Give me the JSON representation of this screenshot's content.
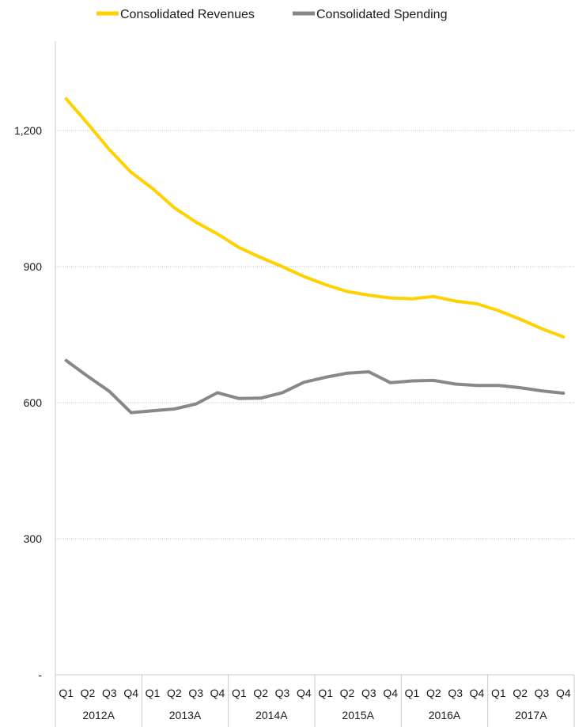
{
  "chart_data": {
    "type": "line",
    "legend_position": "top-center",
    "grid": true,
    "ylim": [
      0,
      1400
    ],
    "y_ticks": [
      0,
      300,
      600,
      900,
      1200
    ],
    "y_tick_labels": [
      "-",
      "300",
      "600",
      "900",
      "1,200"
    ],
    "categories": [
      "Q1",
      "Q2",
      "Q3",
      "Q4",
      "Q1",
      "Q2",
      "Q3",
      "Q4",
      "Q1",
      "Q2",
      "Q3",
      "Q4",
      "Q1",
      "Q2",
      "Q3",
      "Q4",
      "Q1",
      "Q2",
      "Q3",
      "Q4",
      "Q1",
      "Q2",
      "Q3",
      "Q4"
    ],
    "groups": [
      {
        "label": "2012A",
        "span": 4
      },
      {
        "label": "2013A",
        "span": 4
      },
      {
        "label": "2014A",
        "span": 4
      },
      {
        "label": "2015A",
        "span": 4
      },
      {
        "label": "2016A",
        "span": 4
      },
      {
        "label": "2017A",
        "span": 4
      }
    ],
    "series": [
      {
        "name": "Consolidated Revenues",
        "color": "#FFD100",
        "values": [
          1270,
          1215,
          1158,
          1108,
          1072,
          1030,
          998,
          972,
          942,
          920,
          900,
          878,
          860,
          845,
          837,
          831,
          829,
          834,
          824,
          818,
          803,
          784,
          763,
          745
        ]
      },
      {
        "name": "Consolidated Spending",
        "color": "#888888",
        "values": [
          693,
          658,
          625,
          578,
          582,
          586,
          597,
          622,
          609,
          610,
          622,
          645,
          656,
          665,
          668,
          644,
          648,
          649,
          641,
          638,
          638,
          633,
          626,
          621
        ]
      }
    ]
  }
}
